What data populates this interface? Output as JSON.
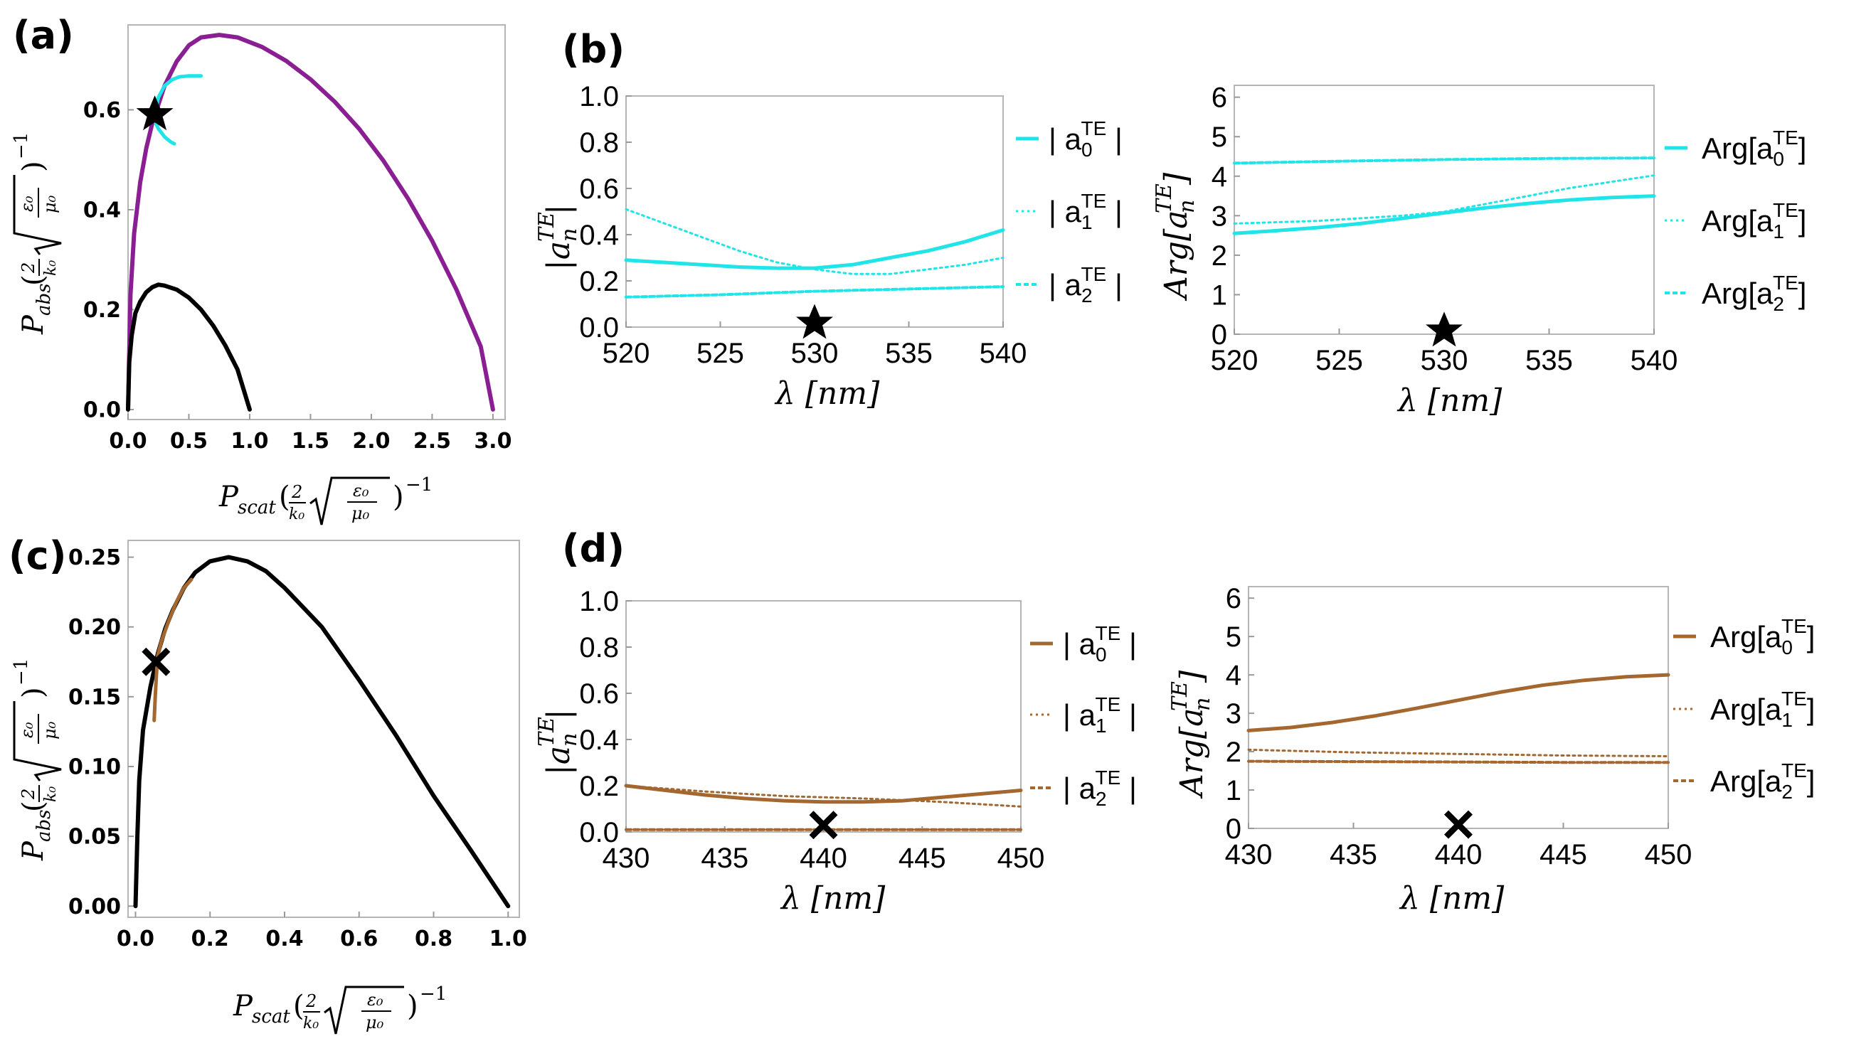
{
  "panels": {
    "a": "(a)",
    "b": "(b)",
    "c": "(c)",
    "d": "(d)"
  },
  "colors": {
    "cyan": "#1fe4e8",
    "purple": "#8a1f93",
    "brown": "#a3672f",
    "black": "#000000"
  },
  "axis_text": {
    "a_xlabel": "Pscat( 2/k0 √(ε0/μ0) )−1",
    "a_ylabel": "Pabs( 2/k0 √(ε0/μ0) )−1",
    "c_xlabel": "Pscat( 2/k0 √(ε0/μ0) )−1",
    "c_ylabel": "Pabs( 2/k0 √(ε0/μ0) )−1",
    "lambda": "λ [nm]",
    "abs_an": "|a_n^TE|",
    "arg_an": "Arg[a_n^TE]"
  },
  "chart_data": [
    {
      "id": "a",
      "type": "line",
      "xlim": [
        0,
        3.1
      ],
      "ylim": [
        -0.02,
        0.77
      ],
      "xticks": [
        0.0,
        0.5,
        1.0,
        1.5,
        2.0,
        2.5,
        3.0
      ],
      "xtick_labels": [
        "0.0",
        "0.5",
        "1.0",
        "1.5",
        "2.0",
        "2.5",
        "3.0"
      ],
      "yticks": [
        0.0,
        0.2,
        0.4,
        0.6
      ],
      "ytick_labels": [
        "0.0",
        "0.2",
        "0.4",
        "0.6"
      ],
      "series": [
        {
          "name": "bound large",
          "color": "#8a1f93",
          "width": 6,
          "dash": "",
          "x": [
            0,
            0.02,
            0.05,
            0.1,
            0.15,
            0.2,
            0.3,
            0.4,
            0.5,
            0.6,
            0.75,
            0.9,
            1.1,
            1.3,
            1.5,
            1.7,
            1.9,
            2.1,
            2.3,
            2.5,
            2.7,
            2.9,
            3.0
          ],
          "y": [
            0,
            0.23,
            0.352,
            0.455,
            0.523,
            0.574,
            0.648,
            0.697,
            0.729,
            0.745,
            0.75,
            0.745,
            0.726,
            0.698,
            0.661,
            0.616,
            0.562,
            0.498,
            0.423,
            0.338,
            0.24,
            0.126,
            0.0
          ]
        },
        {
          "name": "bound small",
          "color": "#000000",
          "width": 6,
          "dash": "",
          "x": [
            0,
            0.01,
            0.03,
            0.06,
            0.1,
            0.15,
            0.2,
            0.25,
            0.3,
            0.4,
            0.5,
            0.6,
            0.7,
            0.8,
            0.9,
            1.0
          ],
          "y": [
            0,
            0.095,
            0.148,
            0.193,
            0.216,
            0.235,
            0.245,
            0.25,
            0.248,
            0.24,
            0.224,
            0.2,
            0.168,
            0.128,
            0.08,
            0.0
          ]
        },
        {
          "name": "trajectory upper",
          "color": "#1fe4e8",
          "width": 5,
          "dash": "",
          "x": [
            0.22,
            0.25,
            0.3,
            0.36,
            0.42,
            0.5,
            0.6
          ],
          "y": [
            0.595,
            0.625,
            0.648,
            0.66,
            0.666,
            0.668,
            0.668
          ]
        },
        {
          "name": "trajectory lower",
          "color": "#1fe4e8",
          "width": 5,
          "dash": "",
          "x": [
            0.2,
            0.22,
            0.25,
            0.3,
            0.35,
            0.38
          ],
          "y": [
            0.59,
            0.577,
            0.562,
            0.546,
            0.536,
            0.532
          ]
        }
      ],
      "marker": {
        "shape": "star",
        "x": 0.22,
        "y": 0.592
      }
    },
    {
      "id": "b1",
      "type": "line",
      "xlim": [
        520,
        540
      ],
      "ylim": [
        0,
        1.0
      ],
      "xticks": [
        520,
        525,
        530,
        535,
        540
      ],
      "xtick_labels": [
        "520",
        "525",
        "530",
        "535",
        "540"
      ],
      "yticks": [
        0.0,
        0.2,
        0.4,
        0.6,
        0.8,
        1.0
      ],
      "ytick_labels": [
        "0.0",
        "0.2",
        "0.4",
        "0.6",
        "0.8",
        "1.0"
      ],
      "xlabel": "λ [nm]",
      "ylabel": "|a_n^TE|",
      "series": [
        {
          "name": "|a0TE|",
          "color": "#1fe4e8",
          "width": 5,
          "dash": "",
          "x": [
            520,
            522,
            524,
            526,
            528,
            530,
            532,
            534,
            536,
            538,
            540
          ],
          "y": [
            0.29,
            0.28,
            0.27,
            0.26,
            0.255,
            0.255,
            0.27,
            0.3,
            0.33,
            0.37,
            0.42
          ]
        },
        {
          "name": "|a1TE|",
          "color": "#1fe4e8",
          "width": 3,
          "dash": "3 5",
          "x": [
            520,
            522,
            524,
            526,
            528,
            530,
            532,
            534,
            536,
            538,
            540
          ],
          "y": [
            0.51,
            0.45,
            0.39,
            0.33,
            0.28,
            0.25,
            0.23,
            0.23,
            0.25,
            0.27,
            0.3
          ]
        },
        {
          "name": "|a2TE|",
          "color": "#1fe4e8",
          "width": 4,
          "dash": "7 4",
          "x": [
            520,
            525,
            530,
            535,
            540
          ],
          "y": [
            0.13,
            0.14,
            0.155,
            0.165,
            0.175
          ]
        }
      ],
      "legend": [
        "|a0TE|",
        "|a1TE|",
        "|a2TE|"
      ],
      "marker": {
        "shape": "star",
        "x": 530,
        "y": 0.02
      }
    },
    {
      "id": "b2",
      "type": "line",
      "xlim": [
        520,
        540
      ],
      "ylim": [
        0,
        6.3
      ],
      "xticks": [
        520,
        525,
        530,
        535,
        540
      ],
      "xtick_labels": [
        "520",
        "525",
        "530",
        "535",
        "540"
      ],
      "yticks": [
        0,
        1,
        2,
        3,
        4,
        5,
        6
      ],
      "ytick_labels": [
        "0",
        "1",
        "2",
        "3",
        "4",
        "5",
        "6"
      ],
      "xlabel": "λ [nm]",
      "ylabel": "Arg[a_n^TE]",
      "series": [
        {
          "name": "Arg[a0TE]",
          "color": "#1fe4e8",
          "width": 5,
          "dash": "",
          "x": [
            520,
            522,
            524,
            526,
            528,
            530,
            532,
            534,
            536,
            538,
            540
          ],
          "y": [
            2.55,
            2.62,
            2.7,
            2.8,
            2.93,
            3.07,
            3.2,
            3.31,
            3.4,
            3.46,
            3.5
          ]
        },
        {
          "name": "Arg[a1TE]",
          "color": "#1fe4e8",
          "width": 3,
          "dash": "3 5",
          "x": [
            520,
            524,
            528,
            530,
            532,
            536,
            540
          ],
          "y": [
            2.8,
            2.87,
            3.0,
            3.1,
            3.3,
            3.7,
            4.02
          ]
        },
        {
          "name": "Arg[a2TE]",
          "color": "#1fe4e8",
          "width": 4,
          "dash": "7 4",
          "x": [
            520,
            525,
            530,
            535,
            540
          ],
          "y": [
            4.33,
            4.38,
            4.42,
            4.45,
            4.46
          ]
        }
      ],
      "legend": [
        "Arg[a0TE]",
        "Arg[a1TE]",
        "Arg[a2TE]"
      ],
      "marker": {
        "shape": "star",
        "x": 530,
        "y": 0.1
      }
    },
    {
      "id": "c",
      "type": "line",
      "xlim": [
        -0.02,
        1.03
      ],
      "ylim": [
        -0.008,
        0.262
      ],
      "xticks": [
        0.0,
        0.2,
        0.4,
        0.6,
        0.8,
        1.0
      ],
      "xtick_labels": [
        "0.0",
        "0.2",
        "0.4",
        "0.6",
        "0.8",
        "1.0"
      ],
      "yticks": [
        0.0,
        0.05,
        0.1,
        0.15,
        0.2,
        0.25
      ],
      "ytick_labels": [
        "0.00",
        "0.05",
        "0.10",
        "0.15",
        "0.20",
        "0.25"
      ],
      "series": [
        {
          "name": "bound small",
          "color": "#000000",
          "width": 6,
          "dash": "",
          "x": [
            0,
            0.005,
            0.01,
            0.02,
            0.04,
            0.06,
            0.08,
            0.1,
            0.13,
            0.16,
            0.2,
            0.25,
            0.3,
            0.35,
            0.4,
            0.5,
            0.6,
            0.7,
            0.8,
            0.9,
            1.0
          ],
          "y": [
            0,
            0.05,
            0.09,
            0.126,
            0.157,
            0.181,
            0.199,
            0.212,
            0.228,
            0.239,
            0.247,
            0.25,
            0.247,
            0.24,
            0.228,
            0.2,
            0.162,
            0.122,
            0.079,
            0.04,
            0.0
          ]
        },
        {
          "name": "trajectory",
          "color": "#a3672f",
          "width": 5,
          "dash": "",
          "x": [
            0.05,
            0.053,
            0.056,
            0.06,
            0.07,
            0.09,
            0.11,
            0.13,
            0.15
          ],
          "y": [
            0.133,
            0.15,
            0.165,
            0.18,
            0.19,
            0.205,
            0.218,
            0.228,
            0.234
          ]
        }
      ],
      "marker": {
        "shape": "x",
        "x": 0.055,
        "y": 0.175
      }
    },
    {
      "id": "d1",
      "type": "line",
      "xlim": [
        430,
        450
      ],
      "ylim": [
        0,
        1.0
      ],
      "xticks": [
        430,
        435,
        440,
        445,
        450
      ],
      "xtick_labels": [
        "430",
        "435",
        "440",
        "445",
        "450"
      ],
      "yticks": [
        0.0,
        0.2,
        0.4,
        0.6,
        0.8,
        1.0
      ],
      "ytick_labels": [
        "0.0",
        "0.2",
        "0.4",
        "0.6",
        "0.8",
        "1.0"
      ],
      "xlabel": "λ [nm]",
      "ylabel": "|a_n^TE|",
      "series": [
        {
          "name": "|a0TE|",
          "color": "#a3672f",
          "width": 5,
          "dash": "",
          "x": [
            430,
            432,
            434,
            436,
            438,
            440,
            442,
            444,
            446,
            448,
            450
          ],
          "y": [
            0.2,
            0.18,
            0.16,
            0.145,
            0.135,
            0.13,
            0.13,
            0.135,
            0.15,
            0.165,
            0.18
          ]
        },
        {
          "name": "|a1TE|",
          "color": "#a3672f",
          "width": 3,
          "dash": "3 5",
          "x": [
            430,
            434,
            438,
            442,
            446,
            450
          ],
          "y": [
            0.2,
            0.175,
            0.155,
            0.145,
            0.13,
            0.11
          ]
        },
        {
          "name": "|a2TE|",
          "color": "#a3672f",
          "width": 4,
          "dash": "7 4",
          "x": [
            430,
            440,
            450
          ],
          "y": [
            0.01,
            0.01,
            0.01
          ]
        }
      ],
      "legend": [
        "|a0TE|",
        "|a1TE|",
        "|a2TE|"
      ],
      "marker": {
        "shape": "x",
        "x": 440,
        "y": 0.03
      }
    },
    {
      "id": "d2",
      "type": "line",
      "xlim": [
        430,
        450
      ],
      "ylim": [
        0,
        6.3
      ],
      "xticks": [
        430,
        435,
        440,
        445,
        450
      ],
      "xtick_labels": [
        "430",
        "435",
        "440",
        "445",
        "450"
      ],
      "yticks": [
        0,
        1,
        2,
        3,
        4,
        5,
        6
      ],
      "ytick_labels": [
        "0",
        "1",
        "2",
        "3",
        "4",
        "5",
        "6"
      ],
      "xlabel": "λ [nm]",
      "ylabel": "Arg[a_n^TE]",
      "series": [
        {
          "name": "Arg[a0TE]",
          "color": "#a3672f",
          "width": 5,
          "dash": "",
          "x": [
            430,
            432,
            434,
            436,
            438,
            440,
            442,
            444,
            446,
            448,
            450
          ],
          "y": [
            2.55,
            2.63,
            2.76,
            2.93,
            3.13,
            3.34,
            3.55,
            3.73,
            3.86,
            3.95,
            4.0
          ]
        },
        {
          "name": "Arg[a1TE]",
          "color": "#a3672f",
          "width": 3,
          "dash": "3 5",
          "x": [
            430,
            435,
            440,
            445,
            450
          ],
          "y": [
            2.05,
            1.98,
            1.94,
            1.9,
            1.88
          ]
        },
        {
          "name": "Arg[a2TE]",
          "color": "#a3672f",
          "width": 4,
          "dash": "7 4",
          "x": [
            430,
            435,
            440,
            445,
            450
          ],
          "y": [
            1.75,
            1.74,
            1.73,
            1.72,
            1.72
          ]
        }
      ],
      "legend": [
        "Arg[a0TE]",
        "Arg[a1TE]",
        "Arg[a2TE]"
      ],
      "marker": {
        "shape": "x",
        "x": 440,
        "y": 0.1
      }
    }
  ]
}
